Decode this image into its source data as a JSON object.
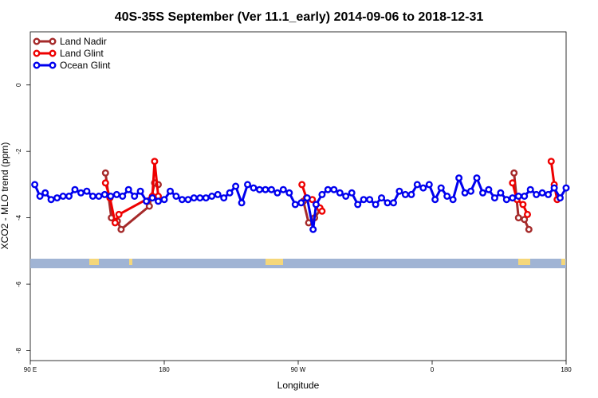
{
  "chart_data": {
    "type": "line",
    "title": "40S-35S September (Ver 11.1_early)   2014-09-06 to 2018-12-31",
    "xlabel": "Longitude",
    "ylabel": "XCO2 - MLO trend (ppm)",
    "xlim": [
      90,
      450
    ],
    "ylim": [
      -8.3,
      1.6
    ],
    "x_ticks": [
      {
        "value": 90,
        "label": "90 E"
      },
      {
        "value": 180,
        "label": "180"
      },
      {
        "value": 270,
        "label": "90 W"
      },
      {
        "value": 360,
        "label": "0"
      },
      {
        "value": 450,
        "label": "180"
      }
    ],
    "y_ticks": [
      {
        "value": 0,
        "label": "0"
      },
      {
        "value": -2,
        "label": "-2"
      },
      {
        "value": -4,
        "label": "-4"
      },
      {
        "value": -6,
        "label": "-6"
      },
      {
        "value": -8,
        "label": "-8"
      }
    ],
    "grid": false,
    "legend_position": "top-left",
    "series": [
      {
        "name": "Land Nadir",
        "color": "#a52a2a",
        "segments": [
          [
            [
              140.5,
              -2.65
            ],
            [
              144.5,
              -4.0
            ],
            [
              148.5,
              -4.1
            ],
            [
              151,
              -4.35
            ],
            [
              170,
              -3.65
            ],
            [
              173.5,
              -2.95
            ],
            [
              176,
              -3.0
            ]
          ],
          [
            [
              273.5,
              -3.5
            ],
            [
              277,
              -4.15
            ],
            [
              281,
              -4.0
            ],
            [
              285,
              -3.75
            ]
          ],
          [
            [
              415,
              -2.65
            ],
            [
              418,
              -4.0
            ],
            [
              422,
              -4.05
            ],
            [
              425,
              -4.35
            ]
          ]
        ]
      },
      {
        "name": "Land Glint",
        "color": "#ee0000",
        "segments": [
          [
            [
              140.5,
              -2.95
            ],
            [
              143.5,
              -3.4
            ],
            [
              147,
              -4.15
            ],
            [
              149.5,
              -3.9
            ],
            [
              172,
              -3.35
            ],
            [
              173.5,
              -2.3
            ],
            [
              176,
              -3.35
            ]
          ],
          [
            [
              272.5,
              -3.0
            ],
            [
              275.5,
              -3.4
            ],
            [
              279.5,
              -3.45
            ],
            [
              284.5,
              -3.7
            ],
            [
              286,
              -3.8
            ]
          ],
          [
            [
              414,
              -2.95
            ],
            [
              417,
              -3.45
            ],
            [
              421,
              -3.6
            ],
            [
              424,
              -3.9
            ]
          ],
          [
            [
              440,
              -2.3
            ],
            [
              442,
              -3.0
            ],
            [
              444,
              -3.45
            ]
          ]
        ]
      },
      {
        "name": "Ocean Glint",
        "color": "#0000ee",
        "segments": [
          [
            [
              93,
              -3.0
            ],
            [
              96.5,
              -3.35
            ],
            [
              100,
              -3.25
            ],
            [
              104,
              -3.45
            ],
            [
              108,
              -3.4
            ],
            [
              112,
              -3.35
            ],
            [
              116,
              -3.35
            ],
            [
              120,
              -3.15
            ],
            [
              124,
              -3.25
            ],
            [
              128,
              -3.2
            ],
            [
              132,
              -3.35
            ],
            [
              136,
              -3.35
            ],
            [
              140,
              -3.3
            ],
            [
              144,
              -3.35
            ],
            [
              148,
              -3.3
            ],
            [
              152,
              -3.35
            ],
            [
              156,
              -3.15
            ],
            [
              160,
              -3.35
            ],
            [
              164,
              -3.2
            ],
            [
              168,
              -3.5
            ],
            [
              172,
              -3.4
            ],
            [
              176,
              -3.5
            ],
            [
              180,
              -3.45
            ],
            [
              184,
              -3.2
            ],
            [
              188,
              -3.35
            ],
            [
              192,
              -3.45
            ],
            [
              196,
              -3.45
            ],
            [
              200,
              -3.4
            ],
            [
              204,
              -3.4
            ],
            [
              208,
              -3.4
            ],
            [
              212,
              -3.35
            ],
            [
              216,
              -3.3
            ],
            [
              220,
              -3.4
            ],
            [
              224,
              -3.25
            ],
            [
              228,
              -3.05
            ],
            [
              232,
              -3.55
            ],
            [
              236,
              -3.0
            ],
            [
              240,
              -3.1
            ],
            [
              244,
              -3.15
            ],
            [
              248,
              -3.15
            ],
            [
              252,
              -3.15
            ],
            [
              256,
              -3.25
            ],
            [
              260,
              -3.15
            ],
            [
              264,
              -3.25
            ],
            [
              268,
              -3.6
            ],
            [
              272,
              -3.55
            ],
            [
              276,
              -3.4
            ],
            [
              280,
              -4.35
            ],
            [
              282,
              -3.6
            ],
            [
              286,
              -3.3
            ],
            [
              290,
              -3.15
            ],
            [
              294,
              -3.15
            ],
            [
              298,
              -3.25
            ],
            [
              302,
              -3.35
            ],
            [
              306,
              -3.25
            ],
            [
              310,
              -3.6
            ],
            [
              314,
              -3.45
            ],
            [
              318,
              -3.45
            ],
            [
              322,
              -3.6
            ],
            [
              326,
              -3.4
            ],
            [
              330,
              -3.55
            ],
            [
              334,
              -3.55
            ],
            [
              338,
              -3.2
            ],
            [
              342,
              -3.3
            ],
            [
              346,
              -3.3
            ],
            [
              350,
              -3.0
            ],
            [
              354,
              -3.1
            ],
            [
              358,
              -3.0
            ],
            [
              362,
              -3.45
            ],
            [
              366,
              -3.1
            ],
            [
              370,
              -3.35
            ],
            [
              374,
              -3.45
            ],
            [
              378,
              -2.8
            ],
            [
              382,
              -3.25
            ],
            [
              386,
              -3.2
            ],
            [
              390,
              -2.8
            ],
            [
              394,
              -3.25
            ],
            [
              398,
              -3.15
            ],
            [
              402,
              -3.4
            ],
            [
              406,
              -3.25
            ],
            [
              410,
              -3.45
            ],
            [
              414,
              -3.4
            ],
            [
              418,
              -3.35
            ],
            [
              422,
              -3.35
            ],
            [
              426,
              -3.15
            ],
            [
              430,
              -3.3
            ],
            [
              434,
              -3.25
            ],
            [
              438,
              -3.3
            ],
            [
              442,
              -3.1
            ],
            [
              446,
              -3.4
            ],
            [
              450,
              -3.1
            ]
          ]
        ]
      }
    ],
    "colors": {
      "ocean_band": "#a0b4d4",
      "land_patch": "#f5d77a"
    }
  }
}
